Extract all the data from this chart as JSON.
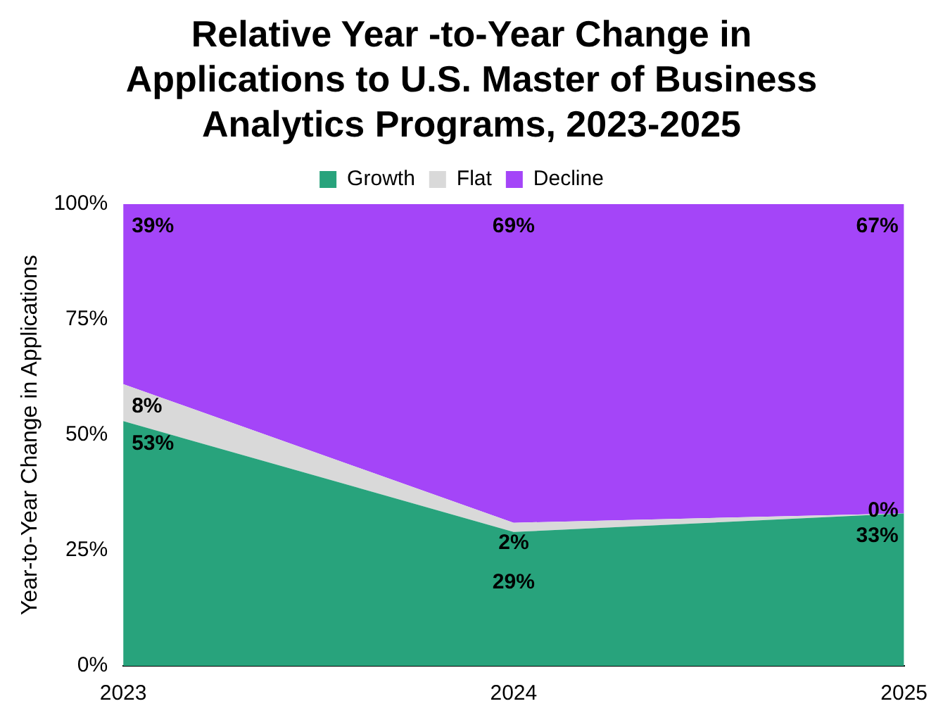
{
  "chart_data": {
    "type": "area",
    "title": "Relative Year -to-Year Change in Applications to U.S. Master of Business Analytics Programs, 2023-2025",
    "ylabel": "Year-to-Year Change in Applications",
    "categories": [
      "2023",
      "2024",
      "2025"
    ],
    "stacked": true,
    "legend": "top",
    "grid": false,
    "ylim": [
      0,
      100
    ],
    "yticks": [
      {
        "value": 0,
        "label": "0%"
      },
      {
        "value": 25,
        "label": "25%"
      },
      {
        "value": 50,
        "label": "50%"
      },
      {
        "value": 75,
        "label": "75%"
      },
      {
        "value": 100,
        "label": "100%"
      }
    ],
    "series": [
      {
        "name": "Growth",
        "color": "#28a37c",
        "values": [
          53,
          29,
          33
        ],
        "value_labels": [
          "53%",
          "29%",
          "33%"
        ]
      },
      {
        "name": "Flat",
        "color": "#d9d9d9",
        "values": [
          8,
          2,
          0
        ],
        "value_labels": [
          "8%",
          "2%",
          "0%"
        ]
      },
      {
        "name": "Decline",
        "color": "#a445f8",
        "values": [
          39,
          69,
          67
        ],
        "value_labels": [
          "39%",
          "69%",
          "67%"
        ]
      }
    ]
  }
}
